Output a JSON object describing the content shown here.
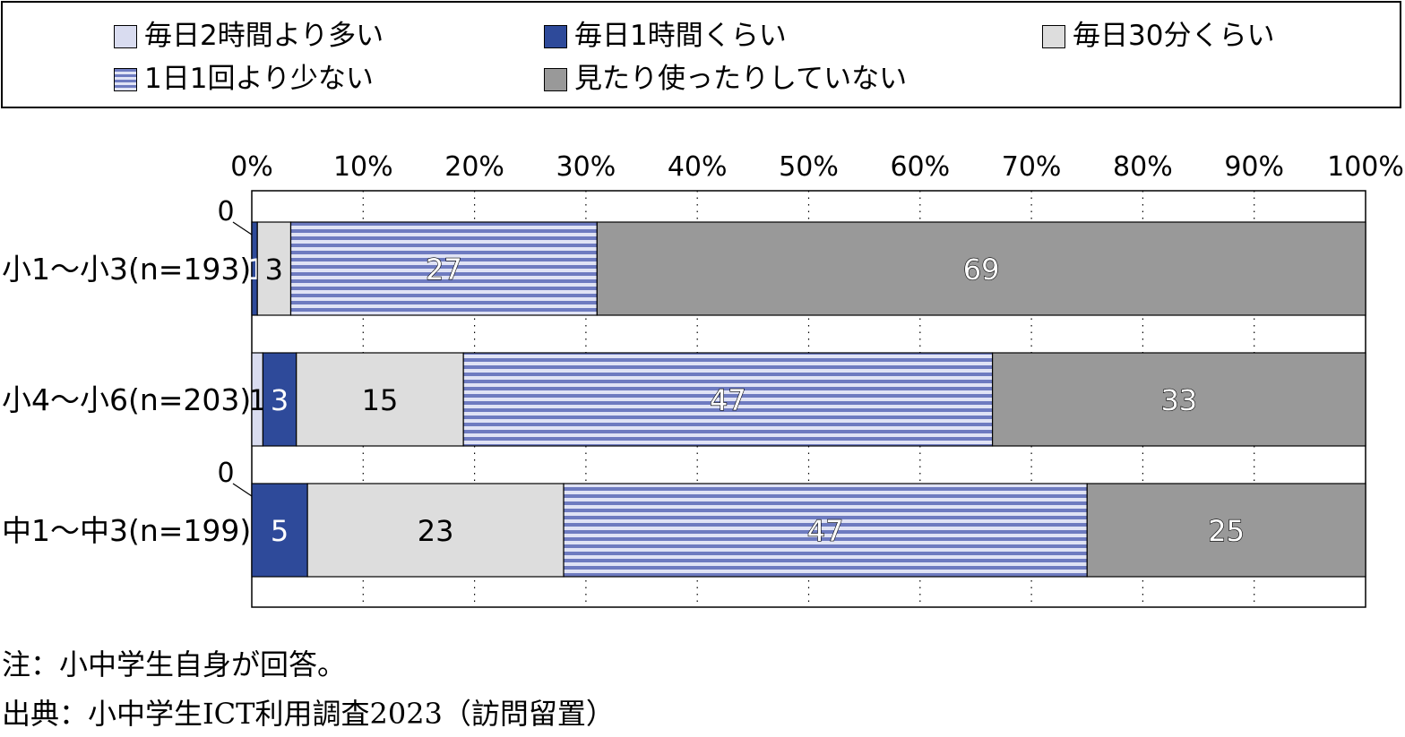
{
  "legend": {
    "items": [
      {
        "label": "毎日2時間より多い",
        "fill": "#d9dcf0",
        "pattern": "solid"
      },
      {
        "label": "毎日1時間くらい",
        "fill": "#2e4a9a",
        "pattern": "solid"
      },
      {
        "label": "毎日30分くらい",
        "fill": "#dddddd",
        "pattern": "solid"
      },
      {
        "label": "1日1回より少ない",
        "fill": "#7f89c8",
        "pattern": "stripes"
      },
      {
        "label": "見たり使ったりしていない",
        "fill": "#999999",
        "pattern": "solid"
      }
    ]
  },
  "chart_data": {
    "type": "bar",
    "orientation": "horizontal",
    "stacked": true,
    "percent_axis": true,
    "xlim": [
      0,
      100
    ],
    "xticks": [
      "0%",
      "10%",
      "20%",
      "30%",
      "40%",
      "50%",
      "60%",
      "70%",
      "80%",
      "90%",
      "100%"
    ],
    "categories": [
      "小1～小3(n=193)",
      "小4～小6(n=203)",
      "中1～中3(n=199)"
    ],
    "series": [
      {
        "name": "毎日2時間より多い",
        "values": [
          0,
          1,
          0
        ],
        "labels": [
          "0",
          "1",
          "0"
        ]
      },
      {
        "name": "毎日1時間くらい",
        "values": [
          0.5,
          3,
          5
        ],
        "labels": [
          "1",
          "3",
          "5"
        ]
      },
      {
        "name": "毎日30分くらい",
        "values": [
          3,
          15,
          23
        ],
        "labels": [
          "3",
          "15",
          "23"
        ]
      },
      {
        "name": "1日1回より少ない",
        "values": [
          27.5,
          47.5,
          47
        ],
        "labels": [
          "27",
          "47",
          "47"
        ]
      },
      {
        "name": "見たり使ったりしていない",
        "values": [
          69,
          33.5,
          25
        ],
        "labels": [
          "69",
          "33",
          "25"
        ]
      }
    ],
    "grid": "vertical dotted",
    "legend_position": "top"
  },
  "notes": {
    "note": "注：小中学生自身が回答。",
    "source": "出典：小中学生ICT利用調査2023（訪問留置）"
  }
}
